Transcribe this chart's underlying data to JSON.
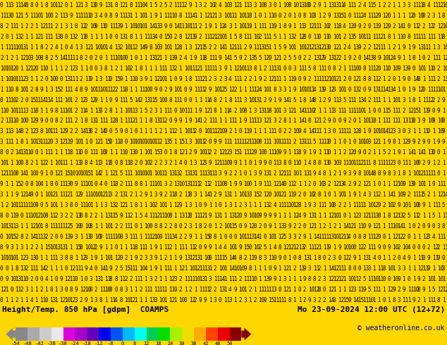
{
  "title_left": "Height/Temp. 850 hPa [gdpm]  COAMPS",
  "title_right": "Mo 23-09-2024 12:00 UTC (12+72)",
  "copyright": "© weatheronline.co.uk",
  "background_color": "#FFD700",
  "colorbar_tick_labels": [
    "-54",
    "-48",
    "-42",
    "-38",
    "-30",
    "-24",
    "-18",
    "-12",
    "-8",
    "0",
    "8",
    "12",
    "18",
    "24",
    "30",
    "38",
    "42",
    "48",
    "54"
  ],
  "colorbar_colors": [
    "#888888",
    "#aaaaaa",
    "#cccccc",
    "#e8e8e8",
    "#dd00dd",
    "#aa00cc",
    "#6600bb",
    "#0000ee",
    "#0055ff",
    "#00bbff",
    "#00ffee",
    "#00cc55",
    "#00dd00",
    "#aaee00",
    "#eedd00",
    "#ffaa00",
    "#ff4400",
    "#ee0000",
    "#880000"
  ],
  "arrow_left_color": "#888888",
  "arrow_right_color": "#880000",
  "fig_bg": "#FFD700",
  "main_rows": 29,
  "main_cols": 90,
  "fontsize_main": 5.5,
  "fontsize_label": 8,
  "fontsize_tick": 5,
  "fontsize_copyright": 7
}
